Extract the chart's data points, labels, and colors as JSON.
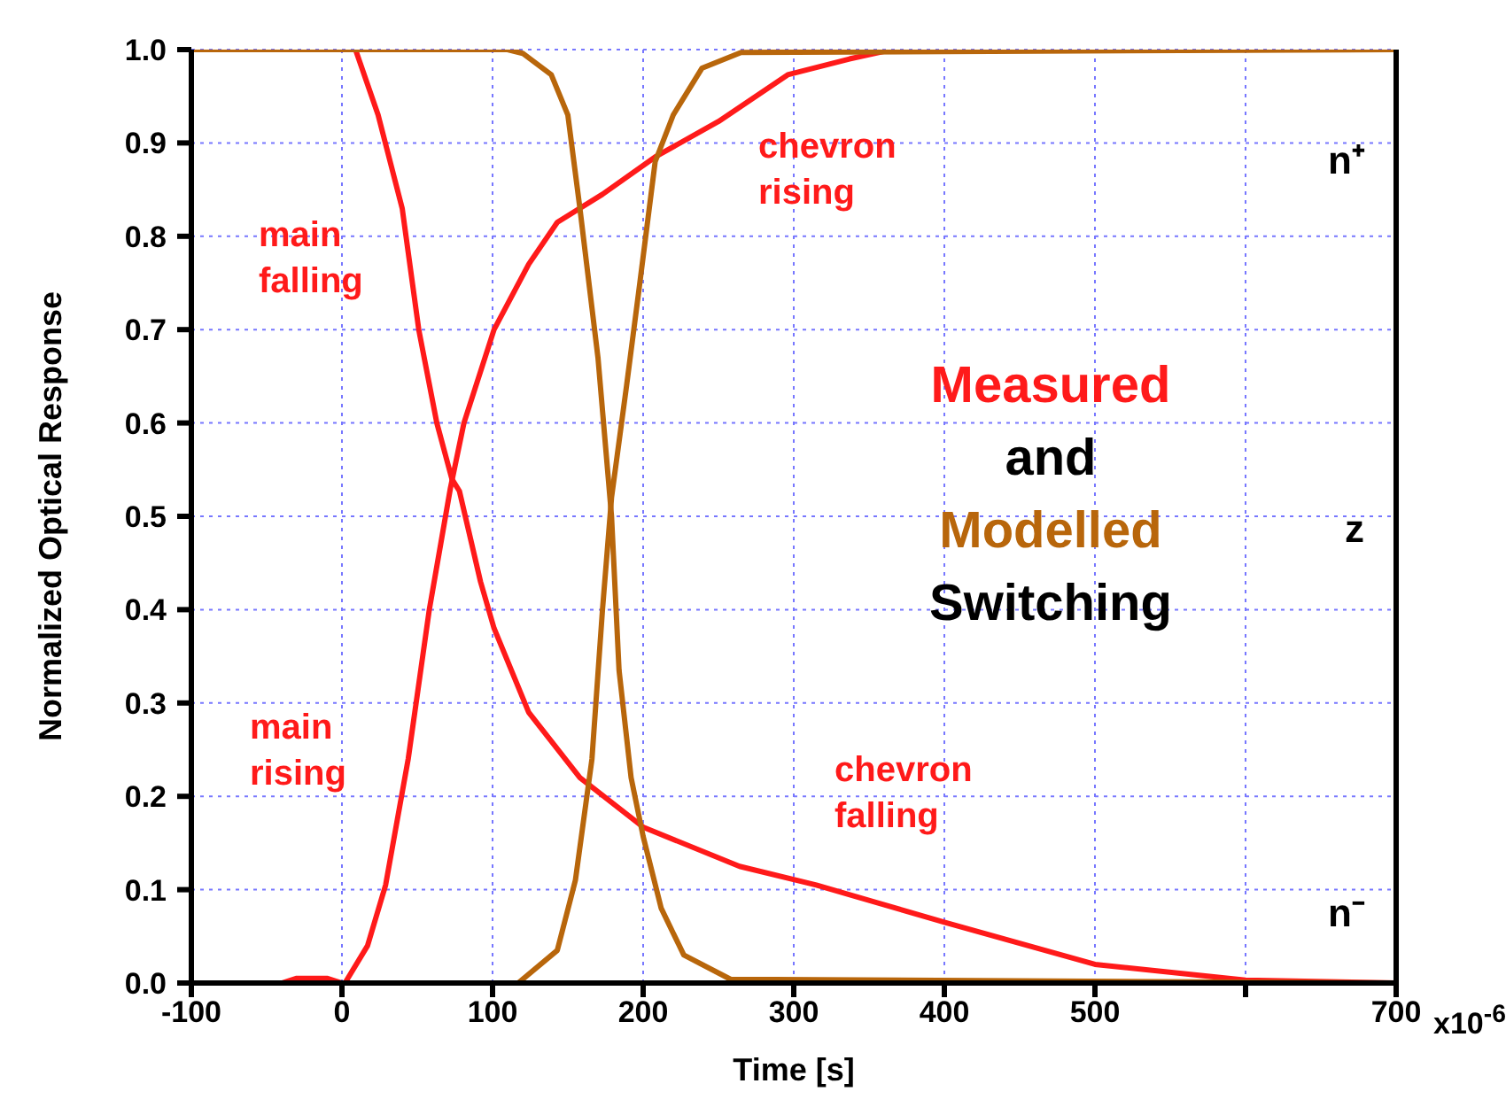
{
  "chart_data": {
    "type": "line",
    "xlabel": "Time [s]",
    "ylabel": "Normalized Optical Response",
    "xlim": [
      -100,
      700
    ],
    "xticks": [
      -100,
      0,
      100,
      200,
      300,
      400,
      500,
      {
        "value": 600,
        "label": null
      },
      700
    ],
    "ylim": [
      0,
      1
    ],
    "yticks": [
      {
        "value": 0,
        "label": "0.0"
      },
      0.1,
      0.2,
      0.3,
      0.4,
      0.5,
      0.6,
      0.7,
      0.8,
      0.9,
      {
        "value": 1,
        "label": "1.0"
      }
    ],
    "grid": true,
    "series": [
      {
        "color": "#ff1a1a",
        "x": [
          -100,
          0,
          9,
          24,
          40,
          51,
          63,
          73,
          78,
          92,
          101,
          124,
          158,
          200,
          264,
          315,
          400,
          500,
          600,
          700
        ],
        "values": [
          1,
          1,
          1,
          0.93,
          0.83,
          0.7,
          0.6,
          0.54,
          0.527,
          0.43,
          0.38,
          0.29,
          0.22,
          0.167,
          0.125,
          0.105,
          0.065,
          0.02,
          0.003,
          0
        ]
      },
      {
        "color": "#ff1a1a",
        "x": [
          -100,
          -40,
          -30,
          -10,
          0,
          2,
          17,
          29,
          44,
          58,
          72,
          81,
          101,
          124,
          143,
          173,
          208,
          250,
          296,
          337,
          365,
          700
        ],
        "values": [
          0,
          0,
          0.005,
          0.005,
          0,
          0,
          0.04,
          0.105,
          0.24,
          0.4,
          0.53,
          0.6,
          0.7,
          0.77,
          0.815,
          0.845,
          0.885,
          0.923,
          0.973,
          0.99,
          1,
          1
        ]
      },
      {
        "color": "#b8660b",
        "x": [
          -100,
          110,
          120,
          139,
          150,
          158,
          170,
          179,
          184,
          192,
          200,
          212,
          227,
          258,
          700
        ],
        "values": [
          1,
          1,
          0.996,
          0.973,
          0.93,
          0.83,
          0.67,
          0.5,
          0.335,
          0.22,
          0.157,
          0.08,
          0.03,
          0.004,
          0
        ]
      },
      {
        "color": "#b8660b",
        "x": [
          -100,
          117,
          143,
          155,
          166,
          173,
          179,
          189,
          197,
          208,
          220,
          239,
          265,
          700
        ],
        "values": [
          0,
          0,
          0.035,
          0.11,
          0.24,
          0.4,
          0.52,
          0.64,
          0.74,
          0.88,
          0.93,
          0.98,
          0.997,
          1
        ]
      }
    ],
    "annotations": [
      "main falling",
      "main rising",
      "chevron rising",
      "chevron falling",
      "Measured",
      "and",
      "Modelled",
      "Switching",
      "n⁺",
      "z",
      "n⁻",
      "x10$^{-6}$"
    ]
  }
}
